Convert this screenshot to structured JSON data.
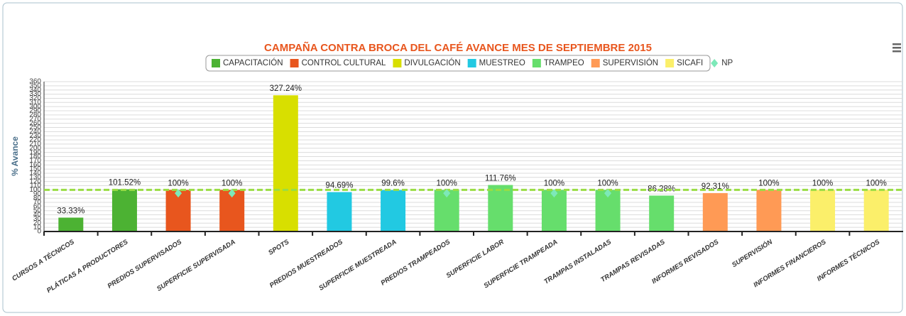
{
  "chart_data": {
    "type": "bar",
    "title": "CAMPAÑA CONTRA BROCA DEL CAFÉ AVANCE MES DE SEPTIEMBRE 2015",
    "y_label": "% Avance",
    "categories": [
      "CURSOS A TÉCNICOS",
      "PLÁTICAS A PRODUCTORES",
      "PREDIOS SUPERVISADOS",
      "SUPERFICIE SUPERVISADA",
      "SPOTS",
      "PREDIOS MUESTREADOS",
      "SUPERFICIE MUESTREADA",
      "PREDIOS TRAMPEADOS",
      "SUPERFICIE LABOR",
      "SUPERFICIE TRAMPEADA",
      "TRAMPAS INSTALADAS",
      "TRAMPAS REVISADAS",
      "INFORMES REVISADOS",
      "SUPERVISIÓN",
      "INFORMES FINANCIEROS",
      "INFORMES TÉCNICOS"
    ],
    "series": [
      {
        "name": "CAPACITACIÓN",
        "color": "#4cb233",
        "values": [
          33.33,
          101.52,
          null,
          null,
          null,
          null,
          null,
          null,
          null,
          null,
          null,
          null,
          null,
          null,
          null,
          null
        ],
        "value_labels": [
          "33.33%",
          "101.52%",
          null,
          null,
          null,
          null,
          null,
          null,
          null,
          null,
          null,
          null,
          null,
          null,
          null,
          null
        ]
      },
      {
        "name": "CONTROL CULTURAL",
        "color": "#e8561e",
        "values": [
          null,
          null,
          100,
          100,
          null,
          null,
          null,
          null,
          null,
          null,
          null,
          null,
          null,
          null,
          null,
          null
        ],
        "value_labels": [
          null,
          null,
          "100%",
          "100%",
          null,
          null,
          null,
          null,
          null,
          null,
          null,
          null,
          null,
          null,
          null,
          null
        ]
      },
      {
        "name": "DIVULGACIÓN",
        "color": "#d8df00",
        "values": [
          null,
          null,
          null,
          null,
          327.24,
          null,
          null,
          null,
          null,
          null,
          null,
          null,
          null,
          null,
          null,
          null
        ],
        "value_labels": [
          null,
          null,
          null,
          null,
          "327.24%",
          null,
          null,
          null,
          null,
          null,
          null,
          null,
          null,
          null,
          null,
          null
        ]
      },
      {
        "name": "MUESTREO",
        "color": "#22c9e2",
        "values": [
          null,
          null,
          null,
          null,
          null,
          94.69,
          99.6,
          null,
          null,
          null,
          null,
          null,
          null,
          null,
          null,
          null
        ],
        "value_labels": [
          null,
          null,
          null,
          null,
          null,
          "94.69%",
          "99.6%",
          null,
          null,
          null,
          null,
          null,
          null,
          null,
          null,
          null
        ]
      },
      {
        "name": "TRAMPEO",
        "color": "#66de6c",
        "values": [
          null,
          null,
          null,
          null,
          null,
          null,
          null,
          100,
          111.76,
          100,
          100,
          86.28,
          null,
          null,
          null,
          null
        ],
        "value_labels": [
          null,
          null,
          null,
          null,
          null,
          null,
          null,
          "100%",
          "111.76%",
          "100%",
          "100%",
          "86.28%",
          null,
          null,
          null,
          null
        ]
      },
      {
        "name": "SUPERVISIÓN",
        "color": "#ff9a55",
        "values": [
          null,
          null,
          null,
          null,
          null,
          null,
          null,
          null,
          null,
          null,
          null,
          null,
          92.31,
          100,
          null,
          null
        ],
        "value_labels": [
          null,
          null,
          null,
          null,
          null,
          null,
          null,
          null,
          null,
          null,
          null,
          null,
          "92.31%",
          "100%",
          null,
          null
        ]
      },
      {
        "name": "SICAFI",
        "color": "#fbef6a",
        "values": [
          null,
          null,
          null,
          null,
          null,
          null,
          null,
          null,
          null,
          null,
          null,
          null,
          null,
          null,
          100,
          100
        ],
        "value_labels": [
          null,
          null,
          null,
          null,
          null,
          null,
          null,
          null,
          null,
          null,
          null,
          null,
          null,
          null,
          "100%",
          "100%"
        ]
      },
      {
        "name": "NP",
        "color": "#7de9b9",
        "type": "scatter",
        "marker": "diamond",
        "values": [
          null,
          null,
          92,
          92,
          null,
          null,
          null,
          92,
          null,
          92,
          92,
          null,
          null,
          null,
          null,
          null
        ]
      }
    ],
    "reference_line": {
      "value": 100,
      "color": "#99dd44"
    },
    "ylim": [
      0,
      360
    ],
    "yticks": [
      0,
      10,
      20,
      30,
      40,
      50,
      60,
      70,
      80,
      90,
      100,
      110,
      120,
      130,
      140,
      150,
      160,
      170,
      180,
      190,
      200,
      210,
      220,
      230,
      240,
      250,
      260,
      270,
      280,
      290,
      300,
      310,
      320,
      330,
      340,
      350,
      360
    ],
    "grid": true
  }
}
